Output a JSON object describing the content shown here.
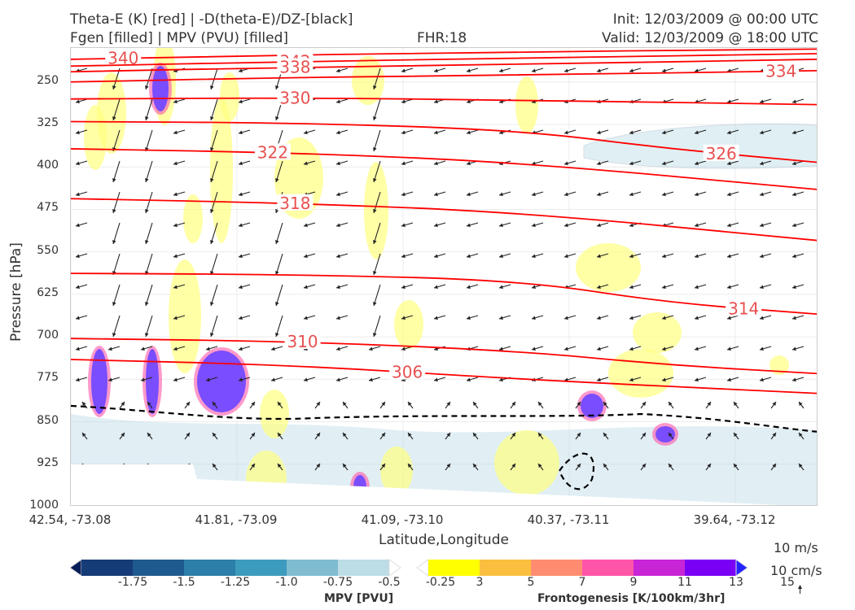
{
  "header": {
    "title_line1": "Theta-E (K) [red] | -D(theta-E)/DZ-[black]",
    "title_line2": "Fgen [filled] | MPV (PVU) [filled]",
    "fhr": "FHR:18",
    "init": "Init: 12/03/2009 @ 00:00 UTC",
    "valid": "Valid: 12/03/2009 @ 18:00 UTC"
  },
  "chart_data": {
    "type": "cross-section",
    "ylabel": "Pressure [hPa]",
    "xlabel": "Latitude,Longitude",
    "y_ticks": [
      "250",
      "325",
      "400",
      "475",
      "550",
      "625",
      "700",
      "775",
      "850",
      "925",
      "1000"
    ],
    "y_range": [
      190,
      1000
    ],
    "x_ticks": [
      "42.54, -73.08",
      "41.81, -73.09",
      "41.09, -73.10",
      "40.37, -73.11",
      "39.64, -73.12"
    ],
    "theta_e_contours": [
      {
        "label": "340",
        "points": [
          [
            0,
            210
          ],
          [
            0.2,
            205
          ],
          [
            0.5,
            198
          ],
          [
            1,
            192
          ]
        ]
      },
      {
        "label": "342",
        "points": [
          [
            0,
            222
          ],
          [
            0.3,
            214
          ],
          [
            0.6,
            208
          ],
          [
            1,
            200
          ]
        ]
      },
      {
        "label": "338",
        "points": [
          [
            0,
            232
          ],
          [
            0.3,
            224
          ],
          [
            0.6,
            219
          ],
          [
            1,
            210
          ]
        ]
      },
      {
        "label": "334",
        "points": [
          [
            0,
            250
          ],
          [
            0.3,
            242
          ],
          [
            0.6,
            238
          ],
          [
            1,
            230
          ]
        ]
      },
      {
        "label": "330",
        "points": [
          [
            0,
            280
          ],
          [
            0.3,
            278
          ],
          [
            0.6,
            282
          ],
          [
            1,
            290
          ]
        ]
      },
      {
        "label": "326",
        "points": [
          [
            0,
            320
          ],
          [
            0.3,
            322
          ],
          [
            0.6,
            335
          ],
          [
            0.8,
            368
          ],
          [
            1,
            392
          ]
        ]
      },
      {
        "label": "322",
        "points": [
          [
            0,
            368
          ],
          [
            0.3,
            375
          ],
          [
            0.6,
            392
          ],
          [
            1,
            440
          ]
        ]
      },
      {
        "label": "318",
        "points": [
          [
            0,
            456
          ],
          [
            0.3,
            464
          ],
          [
            0.6,
            480
          ],
          [
            1,
            530
          ]
        ]
      },
      {
        "label": "314",
        "points": [
          [
            0,
            588
          ],
          [
            0.3,
            590
          ],
          [
            0.6,
            600
          ],
          [
            0.8,
            640
          ],
          [
            1,
            660
          ]
        ]
      },
      {
        "label": "310",
        "points": [
          [
            0,
            703
          ],
          [
            0.3,
            708
          ],
          [
            0.6,
            725
          ],
          [
            0.8,
            750
          ],
          [
            1,
            765
          ]
        ]
      },
      {
        "label": "306",
        "points": [
          [
            0,
            740
          ],
          [
            0.3,
            750
          ],
          [
            0.6,
            775
          ],
          [
            1,
            800
          ]
        ]
      }
    ],
    "mpv_colorbar": {
      "title": "MPV [PVU]",
      "ticks": [
        "-1.75",
        "-1.5",
        "-1.25",
        "-1.0",
        "-0.75",
        "-0.5",
        "-0.25"
      ],
      "colors": [
        "#081d58",
        "#163c78",
        "#1f5a8e",
        "#2b7fa8",
        "#3d9cbd",
        "#7fbcd2",
        "#bcdce6",
        "#ffffff"
      ]
    },
    "fgen_colorbar": {
      "title": "Frontogenesis [K/100km/3hr]",
      "ticks": [
        "3",
        "5",
        "7",
        "9",
        "11",
        "13",
        "15"
      ],
      "colors": [
        "#ffffff",
        "#ffff00",
        "#fbbf40",
        "#ff8c70",
        "#ff55a8",
        "#c825d6",
        "#7a00f5",
        "#2222ff"
      ]
    },
    "reference_vectors": {
      "horizontal": "10 m/s",
      "vertical": "10 cm/s"
    }
  },
  "colors": {
    "theta_e": "#ff0000",
    "label": "#e85050",
    "arrow": "#222222",
    "dtheta": "#000000",
    "mpv_fill": "#bcdce6",
    "fgen_fill": "#ffff80"
  }
}
